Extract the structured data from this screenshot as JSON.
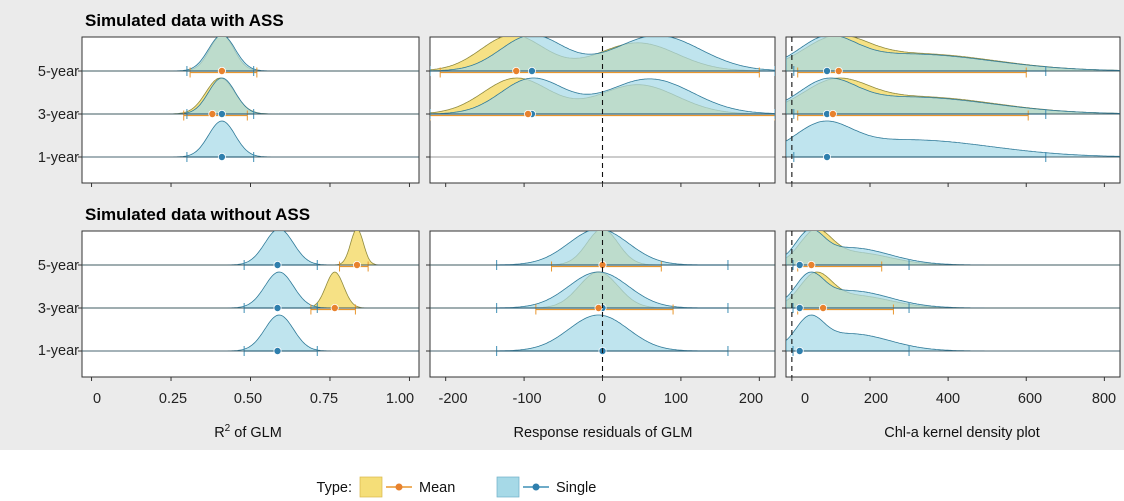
{
  "figure": {
    "sections": [
      {
        "title": "Simulated data with ASS"
      },
      {
        "title": "Simulated data without ASS"
      }
    ],
    "row_labels": [
      "5-year",
      "3-year",
      "1-year"
    ],
    "panels": [
      {
        "xlabel": "R² of GLM",
        "xlabel_main": "R",
        "xlabel_sup": "2",
        "xlabel_rest": " of GLM",
        "ticks": [
          0,
          0.25,
          0.5,
          0.75,
          1.0
        ],
        "tick_labels": [
          "0",
          "0.25",
          "0.50",
          "0.75",
          "1.00"
        ]
      },
      {
        "xlabel": "Response residuals of GLM",
        "ticks": [
          -200,
          -100,
          0,
          100,
          200
        ],
        "tick_labels": [
          "-200",
          "-100",
          "0",
          "100",
          "200"
        ]
      },
      {
        "xlabel": "Chl-a kernel density plot",
        "ticks": [
          0,
          200,
          400,
          600,
          800
        ],
        "tick_labels": [
          "0",
          "200",
          "400",
          "600",
          "800"
        ]
      }
    ],
    "legend": {
      "title": "Type:",
      "items": [
        "Mean",
        "Single"
      ]
    }
  },
  "colors": {
    "mean_fill": "#f5de78",
    "mean_line": "#e8962e",
    "mean_point": "#e8822e",
    "single_fill": "#a6d9e7",
    "single_line": "#3f8fb5",
    "single_point": "#2f7fad",
    "panel_bg": "#ebebeb"
  },
  "chart_data": [
    {
      "type": "ridgeline",
      "title": "Simulated data with ASS",
      "xlabel": "R² of GLM",
      "xlim": [
        -0.03,
        1.03
      ],
      "rows": [
        {
          "label": "5-year",
          "mean": {
            "center": 0.41,
            "sd": 0.038,
            "point": 0.41,
            "interval": [
              0.31,
              0.52
            ]
          },
          "single": {
            "center": 0.41,
            "sd": 0.042,
            "point": 0.41,
            "interval": [
              0.3,
              0.51
            ]
          }
        },
        {
          "label": "3-year",
          "mean": {
            "center": 0.405,
            "sd": 0.045,
            "point": 0.38,
            "interval": [
              0.29,
              0.49
            ]
          },
          "single": {
            "center": 0.41,
            "sd": 0.042,
            "point": 0.41,
            "interval": [
              0.3,
              0.51
            ]
          }
        },
        {
          "label": "1-year",
          "single": {
            "center": 0.41,
            "sd": 0.042,
            "point": 0.41,
            "interval": [
              0.3,
              0.51
            ]
          }
        }
      ]
    },
    {
      "type": "ridgeline",
      "title": "Simulated data with ASS",
      "xlabel": "Response residuals of GLM",
      "xlim": [
        -220,
        220
      ],
      "vline": 0,
      "rows": [
        {
          "label": "5-year",
          "mean": {
            "components": [
              [
                -115,
                40,
                0.56
              ],
              [
                45,
                50,
                0.44
              ]
            ],
            "point": -110,
            "interval": [
              -207,
              200
            ]
          },
          "single": {
            "components": [
              [
                -90,
                40,
                0.5
              ],
              [
                70,
                55,
                0.5
              ]
            ],
            "point": -90,
            "interval": [
              -220,
              220
            ]
          }
        },
        {
          "label": "3-year",
          "mean": {
            "components": [
              [
                -110,
                42,
                0.55
              ],
              [
                45,
                50,
                0.45
              ]
            ],
            "point": -95,
            "interval": [
              -220,
              220
            ]
          },
          "single": {
            "components": [
              [
                -90,
                40,
                0.5
              ],
              [
                60,
                55,
                0.5
              ]
            ],
            "point": -90,
            "interval": [
              -220,
              220
            ]
          }
        },
        {
          "label": "1-year"
        }
      ]
    },
    {
      "type": "ridgeline",
      "title": "Simulated data with ASS",
      "xlabel": "Chl-a kernel density plot",
      "xlim": [
        -15,
        840
      ],
      "vline": 0,
      "rows": [
        {
          "label": "5-year",
          "mean": {
            "components": [
              [
                110,
                80,
                0.6
              ],
              [
                320,
                200,
                0.4
              ]
            ],
            "point": 120,
            "interval": [
              15,
              600
            ]
          },
          "single": {
            "components": [
              [
                90,
                70,
                0.6
              ],
              [
                300,
                210,
                0.4
              ]
            ],
            "point": 90,
            "interval": [
              5,
              650
            ]
          }
        },
        {
          "label": "3-year",
          "mean": {
            "components": [
              [
                110,
                80,
                0.6
              ],
              [
                320,
                200,
                0.4
              ]
            ],
            "point": 105,
            "interval": [
              15,
              605
            ]
          },
          "single": {
            "components": [
              [
                90,
                70,
                0.6
              ],
              [
                300,
                210,
                0.4
              ]
            ],
            "point": 90,
            "interval": [
              5,
              650
            ]
          }
        },
        {
          "label": "1-year",
          "single": {
            "components": [
              [
                80,
                70,
                0.6
              ],
              [
                300,
                210,
                0.4
              ]
            ],
            "point": 90,
            "interval": [
              5,
              650
            ]
          }
        }
      ]
    },
    {
      "type": "ridgeline",
      "title": "Simulated data without ASS",
      "xlabel": "R² of GLM",
      "xlim": [
        -0.03,
        1.03
      ],
      "rows": [
        {
          "label": "5-year",
          "mean": {
            "center": 0.835,
            "sd": 0.02,
            "point": 0.835,
            "interval": [
              0.78,
              0.87
            ]
          },
          "single": {
            "center": 0.59,
            "sd": 0.045,
            "point": 0.585,
            "interval": [
              0.48,
              0.71
            ]
          }
        },
        {
          "label": "3-year",
          "mean": {
            "center": 0.765,
            "sd": 0.028,
            "point": 0.765,
            "interval": [
              0.69,
              0.83
            ]
          },
          "single": {
            "center": 0.59,
            "sd": 0.045,
            "point": 0.585,
            "interval": [
              0.48,
              0.71
            ]
          }
        },
        {
          "label": "1-year",
          "single": {
            "center": 0.59,
            "sd": 0.045,
            "point": 0.585,
            "interval": [
              0.48,
              0.71
            ]
          }
        }
      ]
    },
    {
      "type": "ridgeline",
      "title": "Simulated data without ASS",
      "xlabel": "Response residuals of GLM",
      "xlim": [
        -220,
        220
      ],
      "vline": 0,
      "rows": [
        {
          "label": "5-year",
          "mean": {
            "center": 0,
            "sd": 20,
            "point": 0,
            "interval": [
              -65,
              75
            ]
          },
          "single": {
            "center": -5,
            "sd": 38,
            "point": 0,
            "interval": [
              -135,
              160
            ]
          }
        },
        {
          "label": "3-year",
          "mean": {
            "center": -5,
            "sd": 25,
            "point": -5,
            "interval": [
              -85,
              90
            ]
          },
          "single": {
            "center": -5,
            "sd": 38,
            "point": 0,
            "interval": [
              -135,
              160
            ]
          }
        },
        {
          "label": "1-year",
          "single": {
            "center": -5,
            "sd": 38,
            "point": 0,
            "interval": [
              -135,
              160
            ]
          }
        }
      ]
    },
    {
      "type": "ridgeline",
      "title": "Simulated data without ASS",
      "xlabel": "Chl-a kernel density plot",
      "xlim": [
        -15,
        840
      ],
      "vline": 0,
      "rows": [
        {
          "label": "5-year",
          "mean": {
            "components": [
              [
                60,
                40,
                0.7
              ],
              [
                160,
                90,
                0.3
              ]
            ],
            "point": 50,
            "interval": [
              15,
              230
            ]
          },
          "single": {
            "components": [
              [
                45,
                35,
                0.6
              ],
              [
                150,
                100,
                0.4
              ]
            ],
            "point": 20,
            "interval": [
              3,
              300
            ]
          }
        },
        {
          "label": "3-year",
          "mean": {
            "components": [
              [
                60,
                40,
                0.7
              ],
              [
                160,
                90,
                0.3
              ]
            ],
            "point": 80,
            "interval": [
              15,
              260
            ]
          },
          "single": {
            "components": [
              [
                45,
                35,
                0.6
              ],
              [
                150,
                100,
                0.4
              ]
            ],
            "point": 20,
            "interval": [
              3,
              300
            ]
          }
        },
        {
          "label": "1-year",
          "single": {
            "components": [
              [
                45,
                35,
                0.6
              ],
              [
                150,
                100,
                0.4
              ]
            ],
            "point": 20,
            "interval": [
              3,
              300
            ]
          }
        }
      ]
    }
  ]
}
